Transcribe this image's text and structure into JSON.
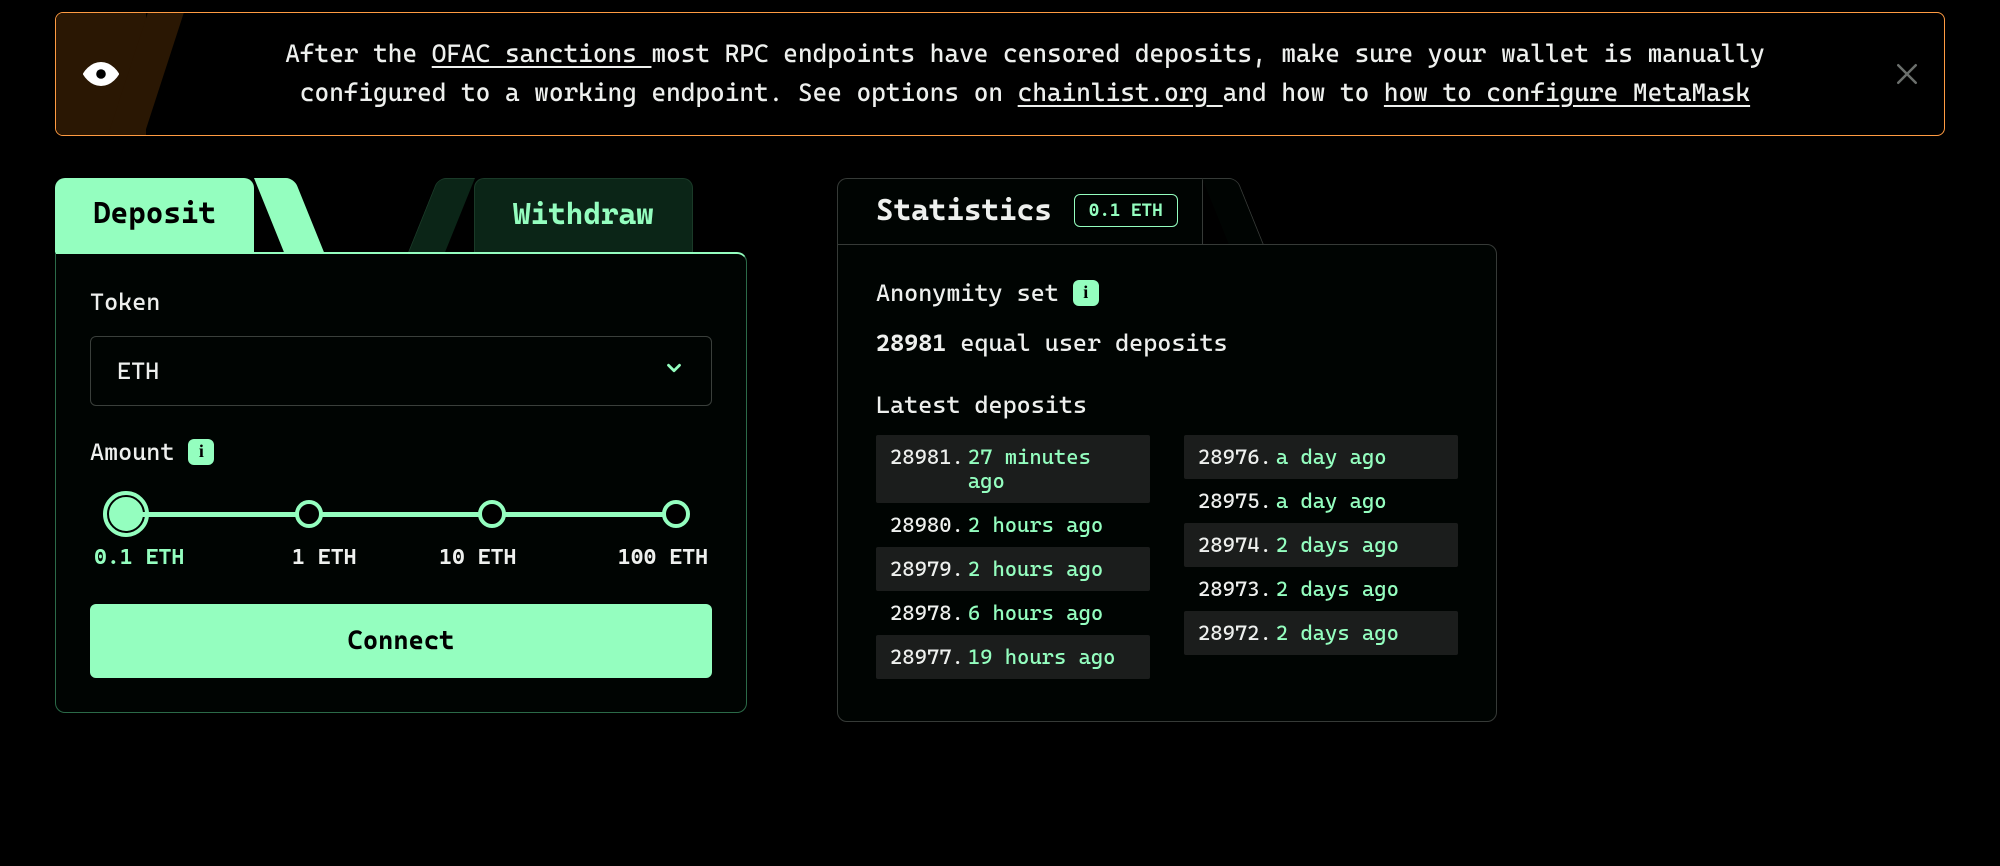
{
  "colors": {
    "accent": "#94febf",
    "banner_border": "#ff9b42",
    "background": "#000000",
    "card_border": "#2b6a48",
    "muted_border": "#363a37",
    "stripe": "#1b1d1c",
    "text": "#eef0ee"
  },
  "banner": {
    "pre": "After the ",
    "link1": "OFAC sanctions ",
    "mid1": "most RPC endpoints have censored deposits, make sure your wallet is manually configured to a working endpoint. See options on ",
    "link2": "chainlist.org ",
    "mid2": "and how to ",
    "link3": "how to configure MetaMask"
  },
  "tabs": {
    "deposit": "Deposit",
    "withdraw": "Withdraw"
  },
  "form": {
    "token_label": "Token",
    "token_value": "ETH",
    "amount_label": "Amount",
    "amounts": [
      "0.1 ETH",
      "1 ETH",
      "10 ETH",
      "100 ETH"
    ],
    "selected_index": 0,
    "connect_label": "Connect"
  },
  "stats": {
    "title": "Statistics",
    "badge": "0.1 ETH",
    "anonymity_label": "Anonymity set",
    "count": "28981",
    "count_suffix": " equal user deposits",
    "latest_label": "Latest deposits",
    "left": [
      {
        "id": "28981",
        "time": "27 minutes ago"
      },
      {
        "id": "28980",
        "time": "2 hours ago"
      },
      {
        "id": "28979",
        "time": "2 hours ago"
      },
      {
        "id": "28978",
        "time": "6 hours ago"
      },
      {
        "id": "28977",
        "time": "19 hours ago"
      }
    ],
    "right": [
      {
        "id": "28976",
        "time": "a day ago"
      },
      {
        "id": "28975",
        "time": "a day ago"
      },
      {
        "id": "28974",
        "time": "2 days ago"
      },
      {
        "id": "28973",
        "time": "2 days ago"
      },
      {
        "id": "28972",
        "time": "2 days ago"
      }
    ]
  }
}
